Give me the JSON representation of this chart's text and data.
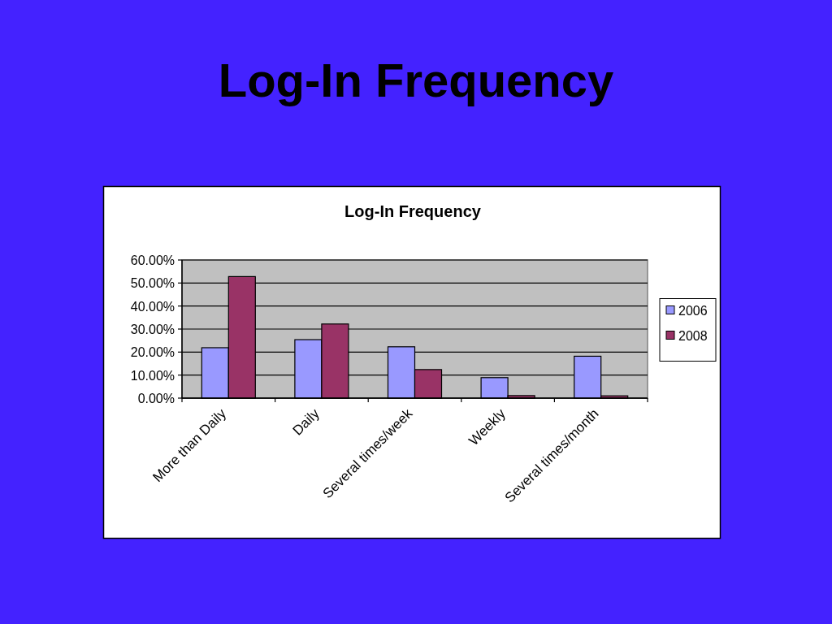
{
  "chart_data": {
    "type": "bar",
    "title": "Log-In Frequency",
    "subtitle": "Log-In Frequency",
    "categories": [
      "More than Daily",
      "Daily",
      "Several times/week",
      "Weekly",
      "Several times/month"
    ],
    "series": [
      {
        "name": "2006",
        "color": "#9999ff",
        "values": [
          21.9,
          25.4,
          22.3,
          8.9,
          18.2
        ]
      },
      {
        "name": "2008",
        "color": "#993366",
        "values": [
          52.8,
          32.2,
          12.4,
          1.1,
          1.0
        ]
      }
    ],
    "ylim": [
      0,
      60
    ],
    "yticks": [
      {
        "value": 0,
        "label": "0.00%"
      },
      {
        "value": 10,
        "label": "10.00%"
      },
      {
        "value": 20,
        "label": "20.00%"
      },
      {
        "value": 30,
        "label": "30.00%"
      },
      {
        "value": 40,
        "label": "40.00%"
      },
      {
        "value": 50,
        "label": "50.00%"
      },
      {
        "value": 60,
        "label": "60.00%"
      }
    ],
    "grid": "y",
    "legend": "right"
  }
}
